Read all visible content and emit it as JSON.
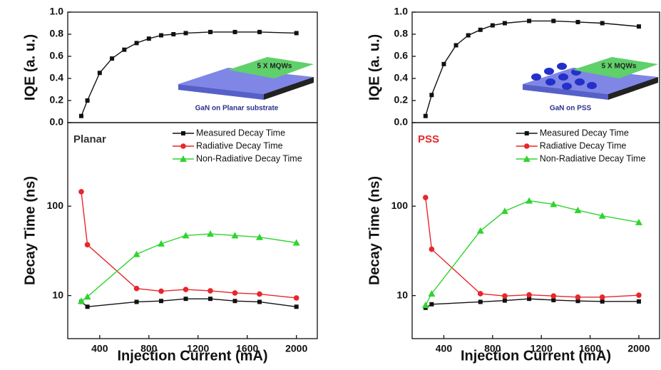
{
  "chart_data": [
    {
      "type": "line",
      "ylabel": "IQE (a. u.)",
      "xlim": [
        140,
        2170
      ],
      "ylim": [
        0,
        1
      ],
      "yticks": [
        {
          "value": 0,
          "label": "0.0"
        },
        {
          "value": 0.2,
          "label": "0.2"
        },
        {
          "value": 0.4,
          "label": "0.4"
        },
        {
          "value": 0.6,
          "label": "0.6"
        },
        {
          "value": 0.8,
          "label": "0.8"
        },
        {
          "value": 1,
          "label": "1.0"
        }
      ],
      "x": [
        250,
        300,
        400,
        500,
        600,
        700,
        800,
        900,
        1000,
        1100,
        1300,
        1500,
        1700,
        2000
      ],
      "values": [
        0.06,
        0.2,
        0.45,
        0.58,
        0.66,
        0.72,
        0.76,
        0.79,
        0.8,
        0.81,
        0.82,
        0.82,
        0.82,
        0.81
      ],
      "color": "#111111",
      "marker": "square",
      "annotations": [
        "5 X MQWs",
        "GaN on Planar substrate"
      ]
    },
    {
      "type": "line",
      "ylabel": "Decay Time (ns)",
      "xlabel": "Injection Current (mA)",
      "log_y": true,
      "xlim": [
        140,
        2170
      ],
      "ylim": [
        3.3,
        860
      ],
      "xticks": [
        400,
        800,
        1200,
        1600,
        2000
      ],
      "yticks": [
        10,
        100
      ],
      "panel_label": "Planar",
      "panel_label_color": "#333333",
      "legend": "upper right",
      "x": [
        250,
        300,
        700,
        900,
        1100,
        1300,
        1500,
        1700,
        2000
      ],
      "series": [
        {
          "name": "Measured Decay Time",
          "color": "#111111",
          "marker": "square",
          "values": [
            8.5,
            7.5,
            8.5,
            8.7,
            9.2,
            9.2,
            8.7,
            8.5,
            7.5
          ]
        },
        {
          "name": "Radiative Decay Time",
          "color": "#e8262b",
          "marker": "circle",
          "values": [
            145,
            37,
            12,
            11.2,
            11.7,
            11.3,
            10.7,
            10.4,
            9.4
          ]
        },
        {
          "name": "Non-Radiative Decay Time",
          "color": "#2fd42f",
          "marker": "triangle",
          "values": [
            8.7,
            9.7,
            29,
            38,
            47,
            49,
            47,
            45,
            39
          ]
        }
      ]
    },
    {
      "type": "line",
      "ylabel": "IQE (a. u.)",
      "xlim": [
        140,
        2170
      ],
      "ylim": [
        0,
        1
      ],
      "yticks": [
        {
          "value": 0,
          "label": "0.0"
        },
        {
          "value": 0.2,
          "label": "0.2"
        },
        {
          "value": 0.4,
          "label": "0.4"
        },
        {
          "value": 0.6,
          "label": "0.6"
        },
        {
          "value": 0.8,
          "label": "0.8"
        },
        {
          "value": 1,
          "label": "1.0"
        }
      ],
      "x": [
        250,
        300,
        400,
        500,
        600,
        700,
        800,
        900,
        1100,
        1300,
        1500,
        1700,
        2000
      ],
      "values": [
        0.06,
        0.25,
        0.53,
        0.7,
        0.79,
        0.84,
        0.88,
        0.9,
        0.92,
        0.92,
        0.91,
        0.9,
        0.87
      ],
      "color": "#111111",
      "marker": "square",
      "annotations": [
        "5 X MQWs",
        "GaN on PSS"
      ]
    },
    {
      "type": "line",
      "ylabel": "Decay Time (ns)",
      "xlabel": "Injection Current (mA)",
      "log_y": true,
      "xlim": [
        140,
        2170
      ],
      "ylim": [
        3.3,
        860
      ],
      "xticks": [
        400,
        800,
        1200,
        1600,
        2000
      ],
      "yticks": [
        10,
        100
      ],
      "panel_label": "PSS",
      "panel_label_color": "#e8262b",
      "legend": "upper right",
      "x": [
        250,
        300,
        700,
        900,
        1100,
        1300,
        1500,
        1700,
        2000
      ],
      "series": [
        {
          "name": "Measured Decay Time",
          "color": "#111111",
          "marker": "square",
          "values": [
            7.3,
            8,
            8.5,
            8.8,
            9.2,
            8.9,
            8.7,
            8.6,
            8.6
          ]
        },
        {
          "name": "Radiative Decay Time",
          "color": "#e8262b",
          "marker": "circle",
          "values": [
            125,
            33,
            10.5,
            9.9,
            10.2,
            9.9,
            9.6,
            9.6,
            10.1
          ]
        },
        {
          "name": "Non-Radiative Decay Time",
          "color": "#2fd42f",
          "marker": "triangle",
          "values": [
            7.8,
            10.5,
            53,
            88,
            115,
            105,
            90,
            78,
            66
          ]
        }
      ]
    }
  ]
}
